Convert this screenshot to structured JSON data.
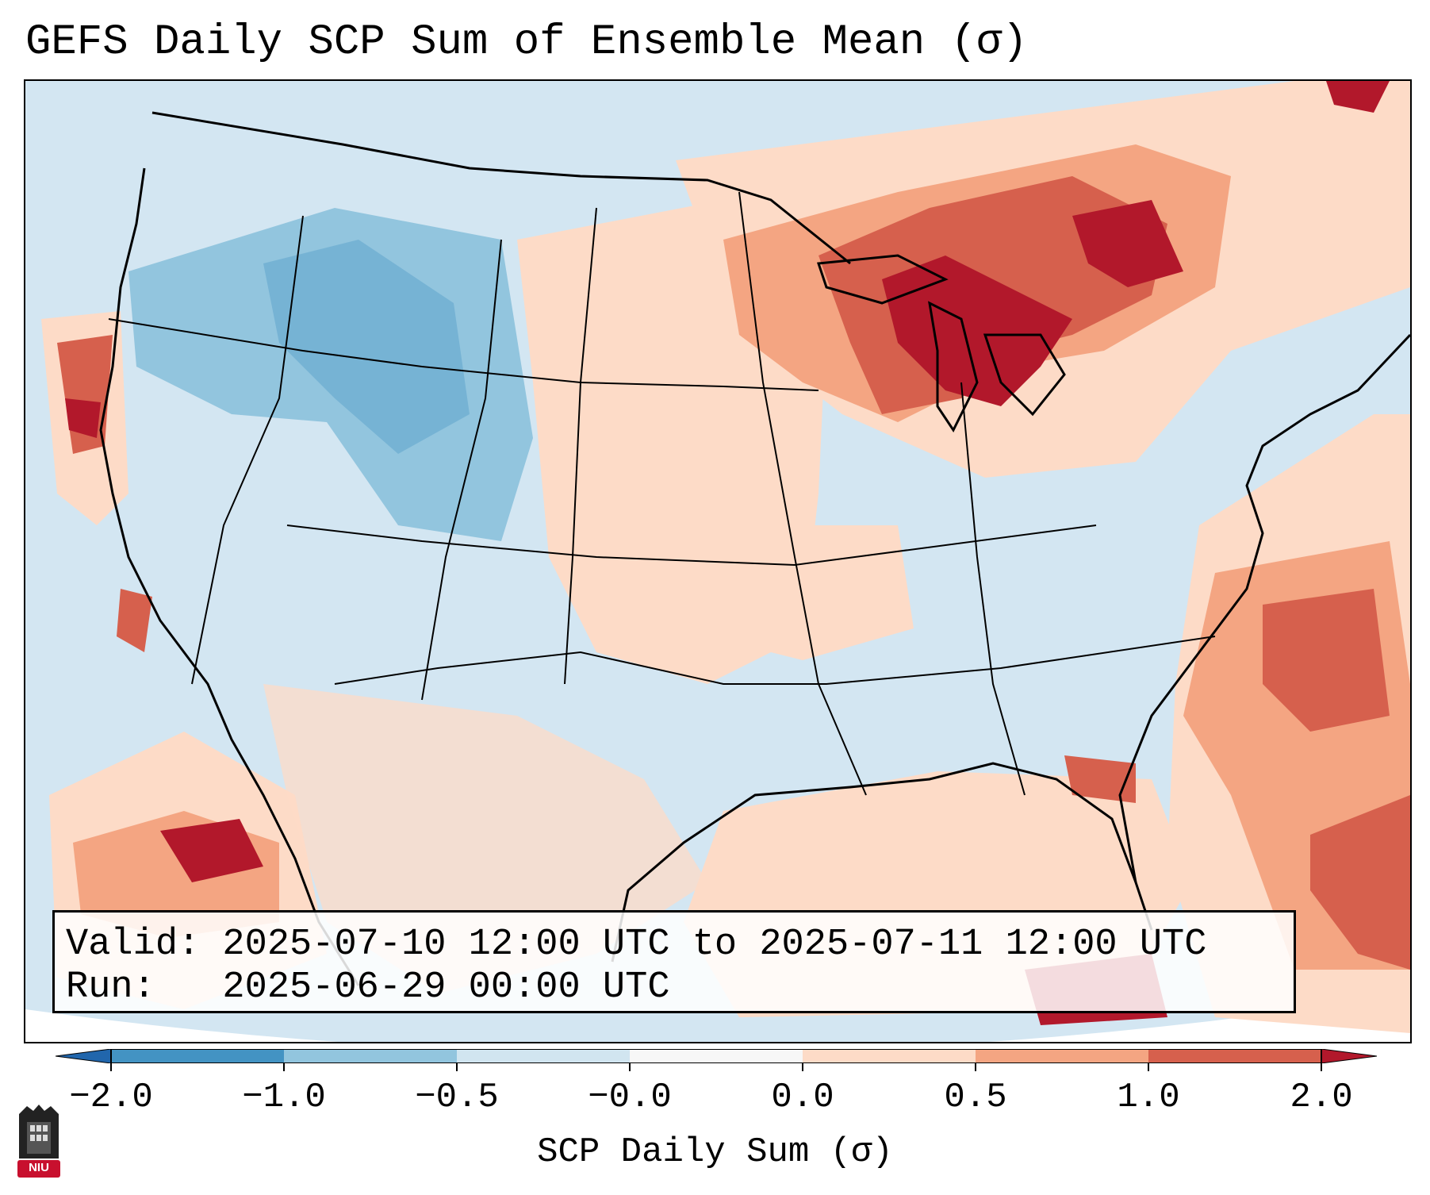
{
  "title": "GEFS Daily SCP Sum of Ensemble Mean (σ)",
  "info": {
    "valid": "Valid: 2025-07-10 12:00 UTC to 2025-07-11 12:00 UTC",
    "run": "Run:   2025-06-29 00:00 UTC"
  },
  "colorbar": {
    "label": "SCP Daily Sum (σ)",
    "ticks": [
      "−2.0",
      "−1.0",
      "−0.5",
      "−0.0",
      "0.0",
      "0.5",
      "1.0",
      "2.0"
    ],
    "bin_colors": [
      "#4393c3",
      "#92c5de",
      "#d1e5f0",
      "#f7f7f7",
      "#fddbc7",
      "#f4a582",
      "#d6604d"
    ],
    "extend_min_color": "#2166ac",
    "extend_max_color": "#b2182b"
  },
  "map": {
    "ocean_color": "#d3e6f2",
    "outside_color": "#ffffff",
    "anomaly_regions": [
      {
        "region": "Great Lakes / Ontario",
        "level": "very high",
        "color": "#b2182b"
      },
      {
        "region": "Upper Midwest / Quebec",
        "level": "high",
        "color": "#d6604d"
      },
      {
        "region": "Northern Plains / New England",
        "level": "above",
        "color": "#fddbc7"
      },
      {
        "region": "Western Atlantic",
        "level": "high",
        "color": "#f4a582"
      },
      {
        "region": "Northern Rockies",
        "level": "below",
        "color": "#92c5de"
      },
      {
        "region": "Eastern Pacific / Baja",
        "level": "high",
        "color": "#d6604d"
      },
      {
        "region": "Gulf of Mexico",
        "level": "above",
        "color": "#fddbc7"
      }
    ]
  },
  "logo": {
    "text": "NIU",
    "color": "#c8102e"
  }
}
